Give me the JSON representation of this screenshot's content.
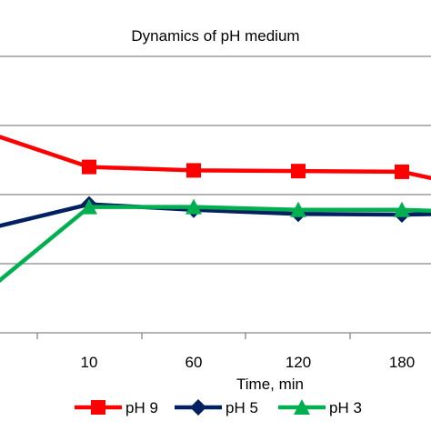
{
  "chart_data": {
    "type": "line",
    "title": "Dynamics  of pH medium",
    "xlabel": "Time, min",
    "ylabel": "",
    "categories": [
      "",
      "10",
      "60",
      "120",
      "180",
      ""
    ],
    "series": [
      {
        "name": "pH 9",
        "color": "#ff0000",
        "marker": "square",
        "values": [
          8.9,
          8.4,
          8.35,
          8.34,
          8.33,
          8.2
        ]
      },
      {
        "name": "pH 5",
        "color": "#002060",
        "marker": "diamond",
        "values": [
          7.5,
          7.86,
          7.78,
          7.72,
          7.71,
          7.72
        ]
      },
      {
        "name": "pH 3",
        "color": "#00b050",
        "marker": "triangle",
        "values": [
          6.6,
          7.82,
          7.82,
          7.78,
          7.78,
          7.76
        ]
      }
    ],
    "ylim": [
      6.0,
      10.0
    ],
    "grid": true,
    "legend_position": "bottom"
  }
}
